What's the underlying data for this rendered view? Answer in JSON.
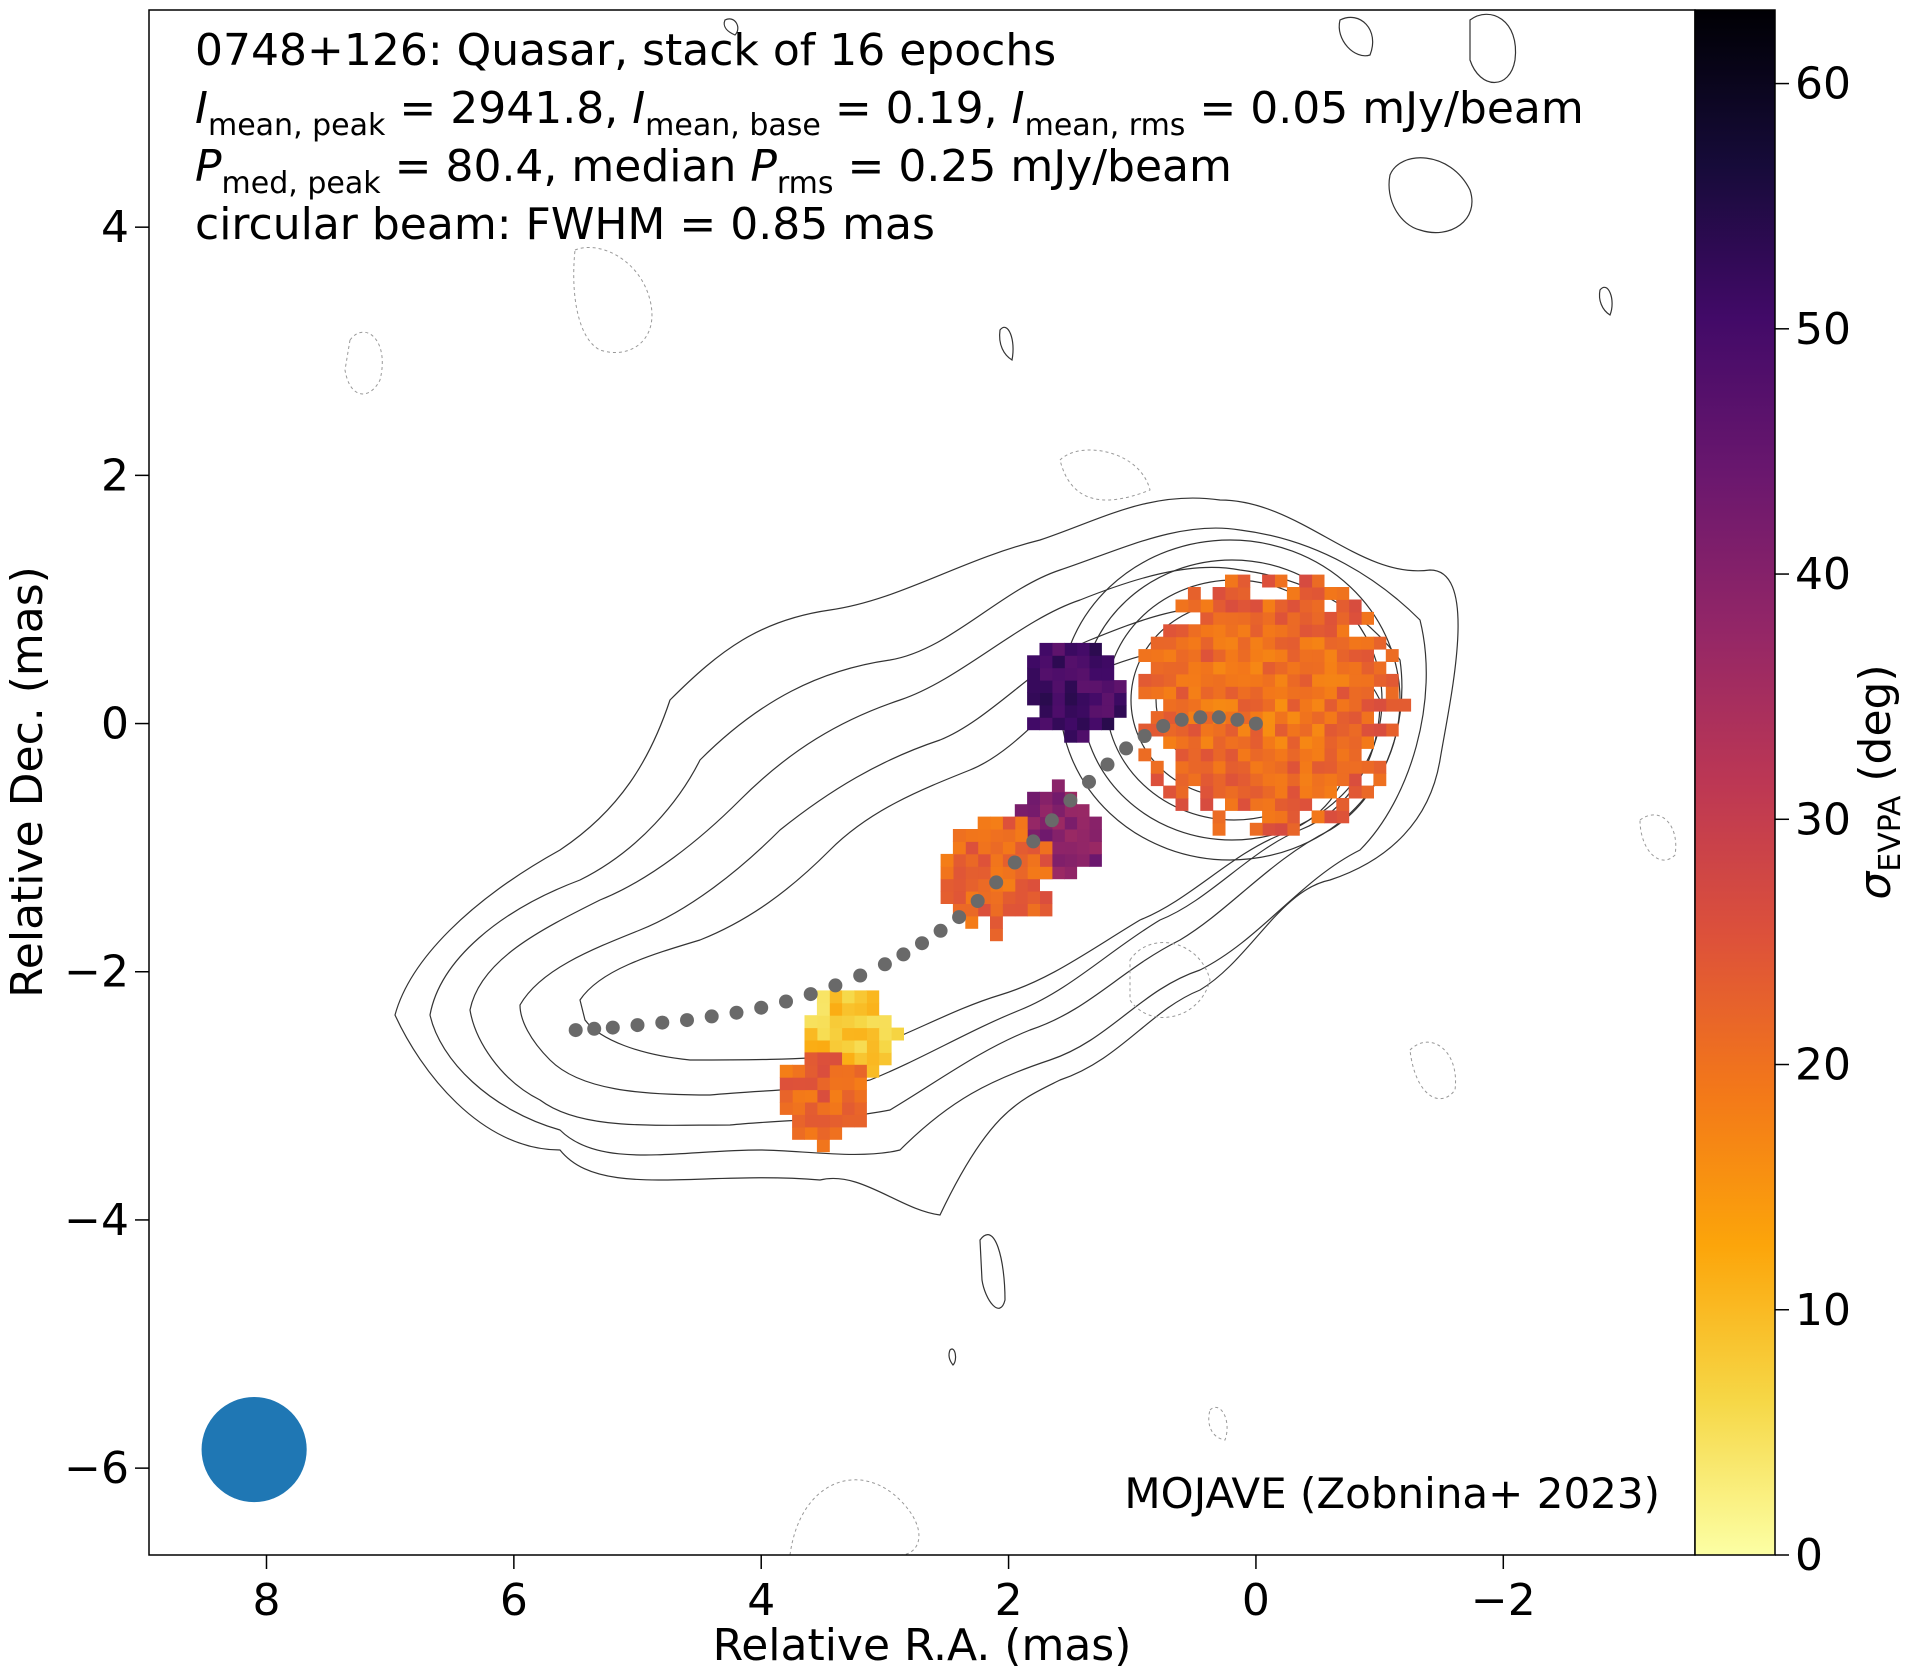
{
  "chart_data": {
    "type": "heatmap",
    "title_lines": [
      "0748+126: Quasar, stack of 16 epochs",
      "I_mean,peak = 2941.8, I_mean,base = 0.19, I_mean,rms = 0.05 mJy/beam",
      "P_med,peak = 80.4, median P_rms = 0.25 mJy/beam",
      "circular beam: FWHM = 0.85 mas"
    ],
    "title": {
      "line1": "0748+126: Quasar, stack of 16 epochs",
      "l2_i1": "I",
      "l2_s1": "mean, peak",
      "l2_t1": " = 2941.8, ",
      "l2_i2": "I",
      "l2_s2": "mean, base",
      "l2_t2": " = 0.19, ",
      "l2_i3": "I",
      "l2_s3": "mean, rms",
      "l2_t3": " = 0.05 mJy/beam",
      "l3_i1": "P",
      "l3_s1": "med, peak",
      "l3_t1": " = 80.4, median ",
      "l3_i2": "P",
      "l3_s2": "rms",
      "l3_t2": " = 0.25 mJy/beam",
      "line4": "circular beam: FWHM = 0.85 mas"
    },
    "xlabel": "Relative R.A. (mas)",
    "ylabel": "Relative Dec. (mas)",
    "xlim": [
      8.95,
      -3.55
    ],
    "ylim": [
      -6.7,
      5.75
    ],
    "xticks": [
      8,
      6,
      4,
      2,
      0,
      -2
    ],
    "xtick_labels": [
      "8",
      "6",
      "4",
      "2",
      "0",
      "−2"
    ],
    "yticks": [
      4,
      2,
      0,
      -2,
      -4,
      -6
    ],
    "ytick_labels": [
      "4",
      "2",
      "0",
      "−2",
      "−4",
      "−6"
    ],
    "colorbar": {
      "label_sym": "σ",
      "label_sub": "EVPA",
      "label_unit": " (deg)",
      "range": [
        0,
        63
      ],
      "ticks": [
        0,
        10,
        20,
        30,
        40,
        50,
        60
      ],
      "tick_labels": [
        "0",
        "10",
        "20",
        "30",
        "40",
        "50",
        "60"
      ],
      "colormap": "inferno_r"
    },
    "annotation": "MOJAVE (Zobnina+ 2023)",
    "beam": {
      "fwhm_mas": 0.85,
      "center": [
        8.1,
        -5.85
      ],
      "color": "#1f77b4"
    },
    "ridgeline": {
      "color": "#696969",
      "points": [
        [
          0.0,
          0.0
        ],
        [
          0.15,
          0.03
        ],
        [
          0.3,
          0.05
        ],
        [
          0.45,
          0.05
        ],
        [
          0.6,
          0.03
        ],
        [
          0.75,
          -0.02
        ],
        [
          0.9,
          -0.1
        ],
        [
          1.05,
          -0.2
        ],
        [
          1.2,
          -0.33
        ],
        [
          1.35,
          -0.47
        ],
        [
          1.5,
          -0.62
        ],
        [
          1.65,
          -0.78
        ],
        [
          1.8,
          -0.95
        ],
        [
          1.95,
          -1.12
        ],
        [
          2.1,
          -1.28
        ],
        [
          2.25,
          -1.43
        ],
        [
          2.4,
          -1.56
        ],
        [
          2.55,
          -1.67
        ],
        [
          2.7,
          -1.77
        ],
        [
          2.85,
          -1.86
        ],
        [
          3.0,
          -1.94
        ],
        [
          3.2,
          -2.03
        ],
        [
          3.4,
          -2.11
        ],
        [
          3.6,
          -2.18
        ],
        [
          3.8,
          -2.24
        ],
        [
          4.0,
          -2.29
        ],
        [
          4.2,
          -2.33
        ],
        [
          4.4,
          -2.36
        ],
        [
          4.6,
          -2.39
        ],
        [
          4.8,
          -2.41
        ],
        [
          5.0,
          -2.43
        ],
        [
          5.2,
          -2.45
        ],
        [
          5.35,
          -2.46
        ],
        [
          5.5,
          -2.47
        ]
      ]
    },
    "pixel_clusters": [
      {
        "name": "core",
        "center": [
          -0.1,
          0.15
        ],
        "radius": 1.1,
        "sigma_evpa": 19
      },
      {
        "name": "inner-jet-north",
        "center": [
          1.45,
          0.25
        ],
        "radius": 0.45,
        "sigma_evpa": 50
      },
      {
        "name": "inner-jet-south",
        "center": [
          1.6,
          -0.9
        ],
        "radius": 0.4,
        "sigma_evpa": 40
      },
      {
        "name": "jet-orange",
        "center": [
          2.1,
          -1.2
        ],
        "radius": 0.5,
        "sigma_evpa": 22
      },
      {
        "name": "jet-yellow",
        "center": [
          3.3,
          -2.5
        ],
        "radius": 0.4,
        "sigma_evpa": 8
      },
      {
        "name": "jet-lower",
        "center": [
          3.5,
          -3.0
        ],
        "radius": 0.4,
        "sigma_evpa": 22
      }
    ]
  }
}
